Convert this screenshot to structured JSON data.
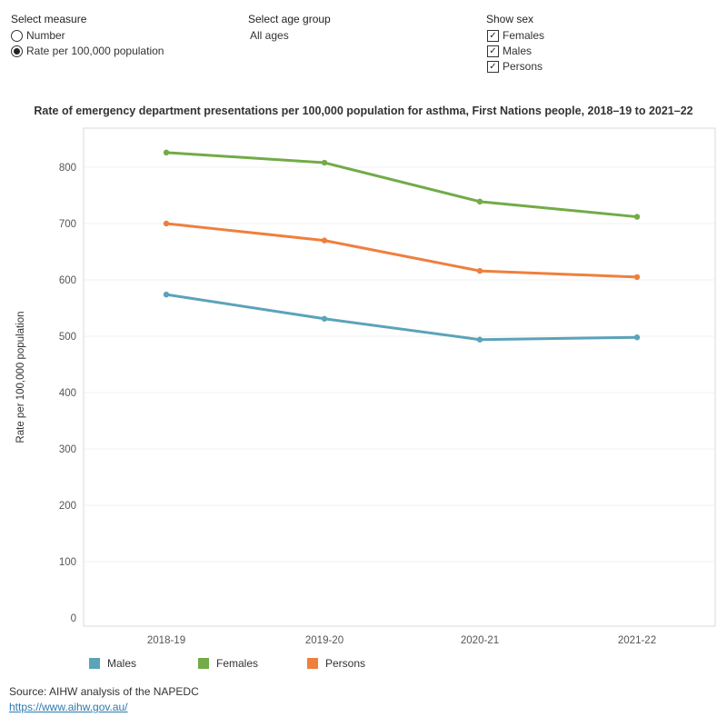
{
  "controls": {
    "measure": {
      "heading": "Select measure",
      "options": [
        {
          "label": "Number",
          "selected": false
        },
        {
          "label": "Rate per 100,000 population",
          "selected": true
        }
      ]
    },
    "age_group": {
      "heading": "Select age group",
      "value": "All ages"
    },
    "sex": {
      "heading": "Show sex",
      "options": [
        {
          "label": "Females",
          "checked": true,
          "mark": "✓"
        },
        {
          "label": "Males",
          "checked": true,
          "mark": "✓"
        },
        {
          "label": "Persons",
          "checked": true,
          "mark": "✓"
        }
      ]
    }
  },
  "chart_data": {
    "type": "line",
    "title": "Rate of emergency department presentations per 100,000 population for asthma,  First Nations people, 2018–19 to 2021–22",
    "xlabel": "",
    "ylabel": "Rate per 100,000 population",
    "categories": [
      "2018-19",
      "2019-20",
      "2020-21",
      "2021-22"
    ],
    "ylim": [
      0,
      850
    ],
    "yticks": [
      0,
      100,
      200,
      300,
      400,
      500,
      600,
      700,
      800
    ],
    "series": [
      {
        "name": "Males",
        "color": "#5ba3b9",
        "values": [
          574,
          531,
          494,
          498
        ]
      },
      {
        "name": "Females",
        "color": "#72ab47",
        "values": [
          826,
          808,
          739,
          712
        ]
      },
      {
        "name": "Persons",
        "color": "#ef7f3d",
        "values": [
          700,
          670,
          616,
          605
        ]
      }
    ]
  },
  "legend": [
    {
      "name": "Males",
      "color": "#5ba3b9"
    },
    {
      "name": "Females",
      "color": "#72ab47"
    },
    {
      "name": "Persons",
      "color": "#ef7f3d"
    }
  ],
  "footer": {
    "source": "Source: AIHW analysis of the NAPEDC",
    "link": "https://www.aihw.gov.au/"
  }
}
